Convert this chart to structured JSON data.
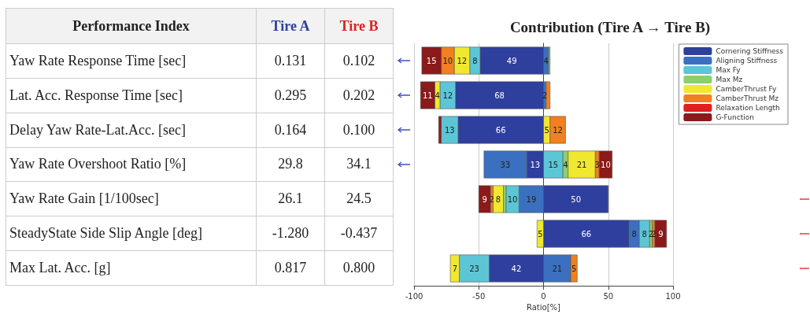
{
  "chart_data": [
    {
      "type": "other",
      "annotations": [
        "Performance Index",
        "Tire A",
        "Tire B",
        "Yaw Rate Response Time [sec]",
        "0.131",
        "0.102",
        "Lat. Acc. Response Time [sec]",
        "0.295",
        "0.202",
        "Delay Yaw Rate-Lat.Acc. [sec]",
        "0.164",
        "0.100",
        "Yaw Rate Overshoot Ratio [%]",
        "29.8",
        "34.1",
        "Yaw Rate Gain [1/100sec]",
        "26.1",
        "24.5",
        "SteadyState Side Slip Angle [deg]",
        "-1.280",
        "-0.437",
        "Max Lat. Acc. [g]",
        "0.817",
        "0.800"
      ]
    },
    {
      "type": "bar",
      "orientation": "horizontal",
      "title": "Contribution (Tire A → Tire B)",
      "xlabel": "Ratio[%]",
      "categories": [
        null,
        null,
        null,
        null,
        null,
        null,
        null
      ],
      "xlim": [
        -100,
        100
      ],
      "xticks": [
        -100,
        -50,
        0,
        50,
        100
      ],
      "grid": "x",
      "legend": "top right",
      "series": [
        {
          "name": "Cornering Stiffness",
          "color": "#2e3f9e",
          "values": [
            49,
            68,
            66,
            13,
            50,
            66,
            42
          ],
          "base": [
            -49,
            -68,
            -66,
            -13,
            0,
            0,
            -42
          ],
          "value_labels": [
            "49",
            "68",
            "66",
            "13",
            "50",
            "66",
            "42"
          ]
        },
        {
          "name": "Aligning Stiffness",
          "color": "#3b70c0",
          "values": [
            4,
            2,
            null,
            33,
            19,
            8,
            21
          ],
          "base": [
            0,
            0,
            null,
            -46,
            -19,
            66,
            0
          ],
          "value_labels": [
            "4",
            "2",
            null,
            "33",
            "19",
            "8",
            "21"
          ]
        },
        {
          "name": "Max Fy",
          "color": "#5cc6d6",
          "values": [
            8,
            12,
            13,
            15,
            10,
            8,
            23
          ],
          "base": [
            -57,
            -80,
            -79,
            0,
            -29,
            74,
            -65
          ],
          "value_labels": [
            "8",
            "12",
            "13",
            "15",
            "10",
            "8",
            "23"
          ]
        },
        {
          "name": "Max Mz",
          "color": "#8ccf6e",
          "values": [
            1,
            null,
            null,
            4,
            2,
            2,
            null
          ],
          "base": [
            4,
            null,
            null,
            15,
            -31,
            82,
            null
          ],
          "value_labels": [
            null,
            null,
            null,
            "4",
            null,
            "2",
            null
          ]
        },
        {
          "name": "CamberThrust Fy",
          "color": "#f0e830",
          "values": [
            12,
            4,
            5,
            21,
            8,
            5,
            7
          ],
          "base": [
            -69,
            -84,
            0,
            19,
            -39,
            -5,
            -72
          ],
          "value_labels": [
            "12",
            "4",
            "5",
            "21",
            "8",
            "5",
            "7"
          ]
        },
        {
          "name": "CamberThrust Mz",
          "color": "#f08020",
          "values": [
            10,
            3,
            12,
            3,
            2,
            2,
            5
          ],
          "base": [
            -79,
            2,
            5,
            40,
            -41,
            84,
            21
          ],
          "value_labels": [
            "10",
            null,
            "12",
            "3",
            "2",
            "2",
            "5"
          ]
        },
        {
          "name": "Relaxation Length",
          "color": "#e02020",
          "values": [
            null,
            null,
            null,
            null,
            null,
            null,
            null
          ],
          "base": [
            null,
            null,
            null,
            null,
            null,
            null,
            null
          ],
          "value_labels": [
            null,
            null,
            null,
            null,
            null,
            null,
            null
          ]
        },
        {
          "name": "G-Function",
          "color": "#8b1a1a",
          "values": [
            15,
            11,
            2,
            10,
            9,
            9,
            null
          ],
          "base": [
            -94,
            -95,
            -81,
            43,
            -50,
            86,
            null
          ],
          "value_labels": [
            "15",
            "11",
            null,
            "10",
            "9",
            "9",
            null
          ]
        }
      ]
    }
  ]
}
